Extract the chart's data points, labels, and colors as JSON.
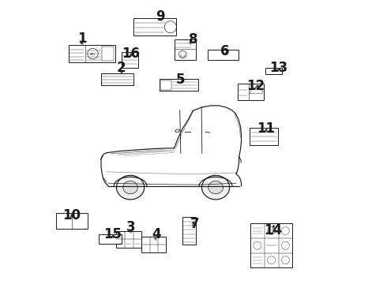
{
  "bg_color": "#ffffff",
  "line_color": "#1a1a1a",
  "numbers": {
    "1": {
      "nx": 0.108,
      "ny": 0.865,
      "bx": 0.06,
      "by": 0.78,
      "bw": 0.165,
      "bh": 0.062
    },
    "2": {
      "nx": 0.245,
      "ny": 0.76,
      "bx": 0.175,
      "by": 0.7,
      "bw": 0.115,
      "bh": 0.042
    },
    "3": {
      "nx": 0.28,
      "ny": 0.2,
      "bx": 0.228,
      "by": 0.128,
      "bw": 0.09,
      "bh": 0.058
    },
    "4": {
      "nx": 0.37,
      "ny": 0.175,
      "bx": 0.318,
      "by": 0.112,
      "bw": 0.085,
      "bh": 0.055
    },
    "5": {
      "nx": 0.455,
      "ny": 0.72,
      "bx": 0.38,
      "by": 0.68,
      "bw": 0.138,
      "bh": 0.042
    },
    "6": {
      "nx": 0.61,
      "ny": 0.82,
      "bx": 0.55,
      "by": 0.788,
      "bw": 0.108,
      "bh": 0.038
    },
    "7": {
      "nx": 0.505,
      "ny": 0.212,
      "bx": 0.46,
      "by": 0.14,
      "bw": 0.048,
      "bh": 0.095
    },
    "8": {
      "nx": 0.5,
      "ny": 0.862,
      "bx": 0.432,
      "by": 0.79,
      "bw": 0.075,
      "bh": 0.072
    },
    "9": {
      "nx": 0.383,
      "ny": 0.942,
      "bx": 0.29,
      "by": 0.875,
      "bw": 0.148,
      "bh": 0.06
    },
    "10": {
      "nx": 0.072,
      "ny": 0.242,
      "bx": 0.018,
      "by": 0.195,
      "bw": 0.11,
      "bh": 0.055
    },
    "11": {
      "nx": 0.755,
      "ny": 0.548,
      "bx": 0.698,
      "by": 0.49,
      "bw": 0.098,
      "bh": 0.06
    },
    "12": {
      "nx": 0.72,
      "ny": 0.698,
      "bx": 0.655,
      "by": 0.648,
      "bw": 0.092,
      "bh": 0.058
    },
    "13": {
      "nx": 0.798,
      "ny": 0.76,
      "bx": 0.752,
      "by": 0.74,
      "bw": 0.06,
      "bh": 0.022
    },
    "14": {
      "nx": 0.78,
      "ny": 0.188,
      "bx": 0.7,
      "by": 0.058,
      "bw": 0.148,
      "bh": 0.155
    },
    "15": {
      "nx": 0.215,
      "ny": 0.175,
      "bx": 0.168,
      "by": 0.142,
      "bw": 0.08,
      "bh": 0.032
    },
    "16": {
      "nx": 0.28,
      "ny": 0.81,
      "bx": 0.248,
      "by": 0.762,
      "bw": 0.058,
      "bh": 0.055
    }
  },
  "font_size_numbers": 12
}
